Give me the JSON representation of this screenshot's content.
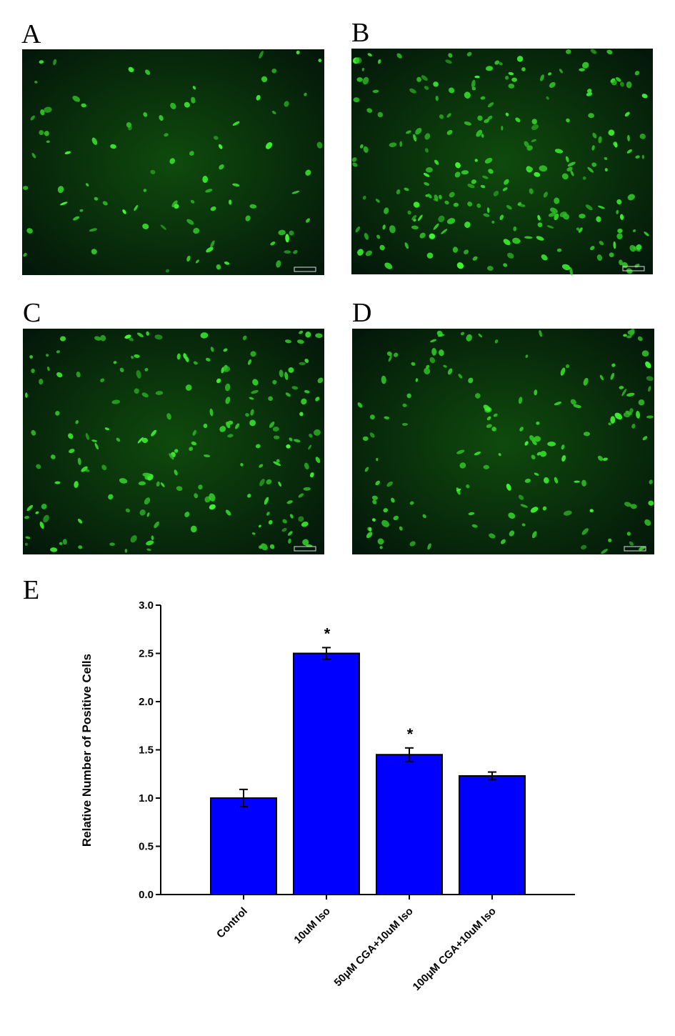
{
  "panels": [
    "A",
    "B",
    "C",
    "D"
  ],
  "chart_label": "E",
  "chart_data": {
    "type": "bar",
    "ylabel": "Relative Number of Positive Cells",
    "categories": [
      "Control",
      "10uM Iso",
      "50μM CGA+10uM Iso",
      "100μM CGA+10uM Iso"
    ],
    "values": [
      1.0,
      2.5,
      1.45,
      1.23
    ],
    "errors": [
      0.09,
      0.06,
      0.07,
      0.04
    ],
    "color": "#0000ff",
    "ylim": [
      0,
      3.0
    ],
    "yticks": [
      {
        "value": 0,
        "label": "0.0"
      },
      {
        "value": 0.5,
        "label": "0.5"
      },
      {
        "value": 1,
        "label": "1.0"
      },
      {
        "value": 1.5,
        "label": "1.5"
      },
      {
        "value": 2,
        "label": "2.0"
      },
      {
        "value": 2.5,
        "label": "2.5"
      },
      {
        "value": 3,
        "label": "3.0"
      }
    ],
    "annotations": [
      {
        "text": "*",
        "category": "10uM Iso"
      },
      {
        "text": "*",
        "category": "50μM CGA+10uM Iso"
      }
    ]
  }
}
